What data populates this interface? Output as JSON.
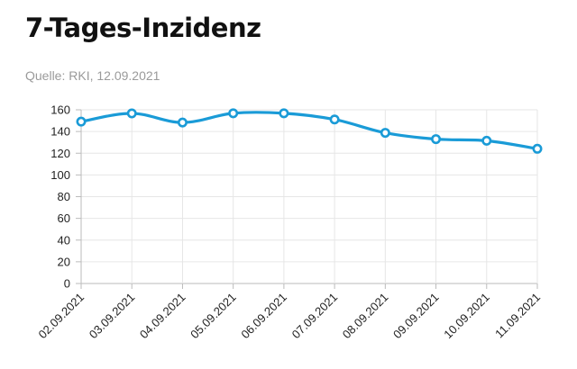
{
  "header": {
    "title": "7-Tages-Inzidenz",
    "source": "Quelle: RKI, 12.09.2021"
  },
  "chart_data": {
    "type": "line",
    "title": "7-Tages-Inzidenz",
    "xlabel": "",
    "ylabel": "",
    "categories": [
      "02.09.2021",
      "03.09.2021",
      "04.09.2021",
      "05.09.2021",
      "06.09.2021",
      "07.09.2021",
      "08.09.2021",
      "09.09.2021",
      "10.09.2021",
      "11.09.2021"
    ],
    "series": [
      {
        "values": [
          149.1,
          156.7,
          148.3,
          156.8,
          156.8,
          151.1,
          138.8,
          133.0,
          131.5,
          124.1
        ]
      }
    ],
    "ylim": [
      0,
      160
    ],
    "yticks": [
      0,
      20,
      40,
      60,
      80,
      100,
      120,
      140,
      160
    ],
    "grid": true,
    "colors": {
      "line": "#1a9bd7",
      "grid": "#e6e6e6",
      "axis": "#bbbbbb"
    }
  }
}
